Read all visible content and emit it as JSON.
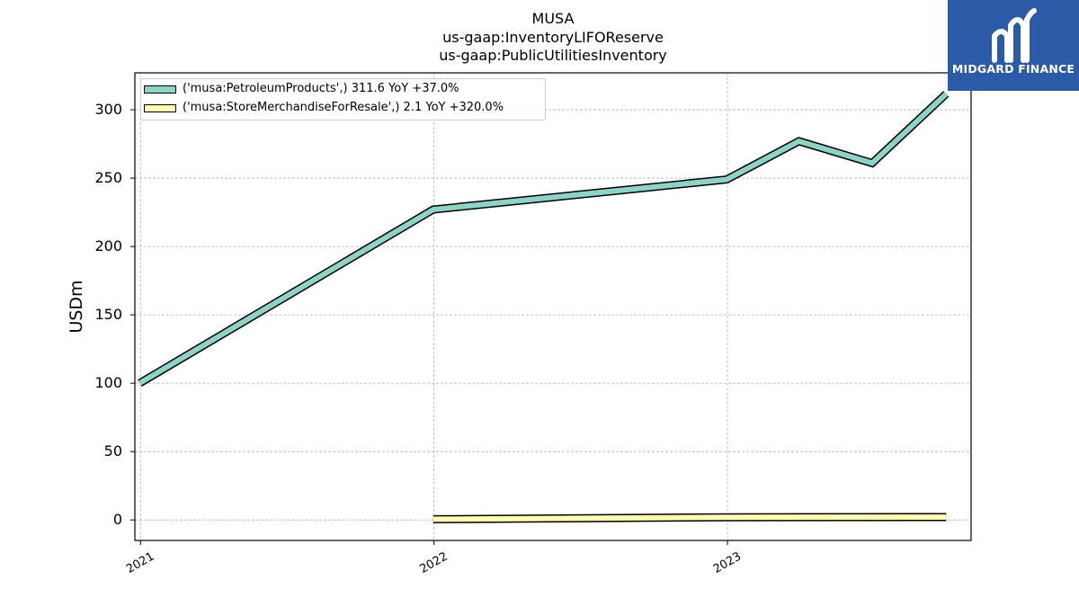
{
  "title_lines": [
    "MUSA",
    "us-gaap:InventoryLIFOReserve",
    "us-gaap:PublicUtilitiesInventory"
  ],
  "logo": {
    "text": "MIDGARD FINANCE",
    "bg_color": "#2b5aa6",
    "fg_color": "#ffffff"
  },
  "chart_data": {
    "type": "line",
    "ylabel": "USDm",
    "xlabel": "",
    "ylim": [
      -15,
      327
    ],
    "xlim": [
      "2020-12-25",
      "2023-10-31"
    ],
    "yticks": [
      0,
      50,
      100,
      150,
      200,
      250,
      300
    ],
    "xticks": [
      {
        "label": "2021",
        "date": "2021-01-01"
      },
      {
        "label": "2022",
        "date": "2022-01-01"
      },
      {
        "label": "2023",
        "date": "2023-01-01"
      }
    ],
    "grid": true,
    "legend_position": "top-left",
    "series": [
      {
        "name": "('musa:PetroleumProducts',) 311.6 YoY +37.0%",
        "color": "#8dd3c7",
        "points": [
          {
            "date": "2020-12-31",
            "value": 100
          },
          {
            "date": "2021-12-31",
            "value": 227
          },
          {
            "date": "2022-12-31",
            "value": 249
          },
          {
            "date": "2023-03-31",
            "value": 277
          },
          {
            "date": "2023-06-30",
            "value": 261
          },
          {
            "date": "2023-09-30",
            "value": 311.6
          }
        ]
      },
      {
        "name": "('musa:StoreMerchandiseForResale',) 2.1 YoY +320.0%",
        "color": "#ffffb3",
        "points": [
          {
            "date": "2021-12-31",
            "value": 0.5
          },
          {
            "date": "2022-12-31",
            "value": 2.0
          },
          {
            "date": "2023-09-30",
            "value": 2.1
          }
        ]
      }
    ]
  }
}
